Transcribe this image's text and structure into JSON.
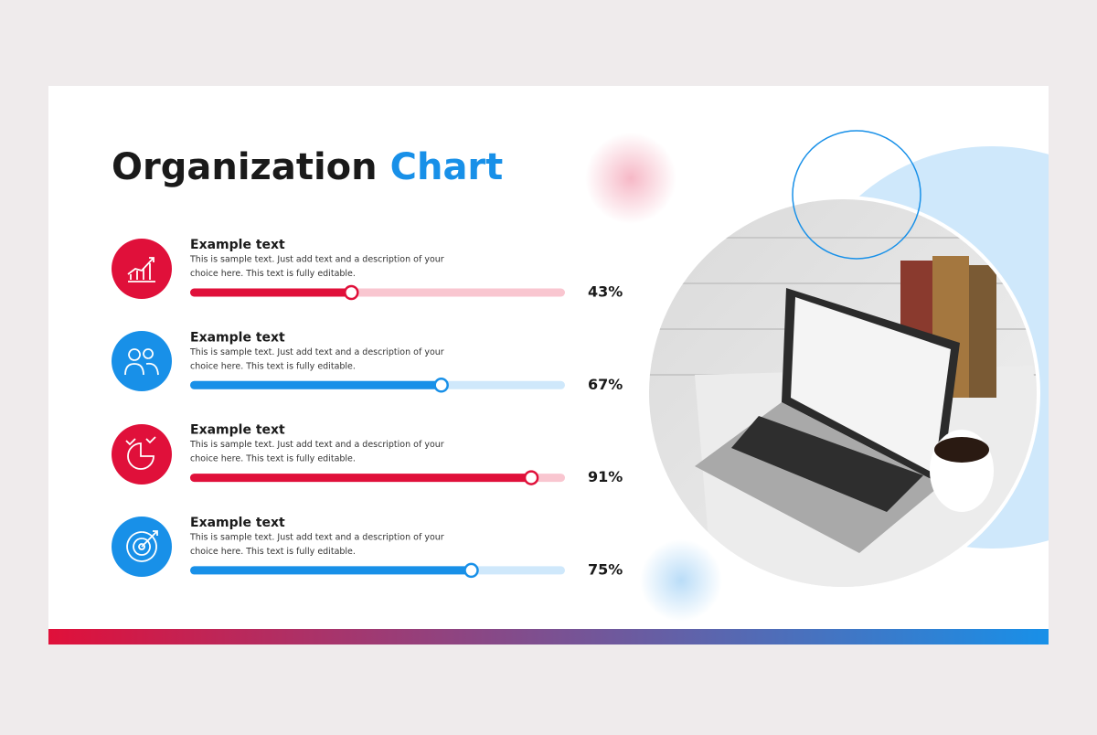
{
  "header": {
    "title_dark": "Organization",
    "title_accent": "Chart"
  },
  "progress": {
    "xlim": [
      0,
      100
    ],
    "items": [
      {
        "title": "Example text",
        "description": [
          "This is sample text. Just add text and a description of your",
          "choice here. This text is fully editable."
        ],
        "value": 43,
        "value_label": "43%",
        "color": "#e0103a",
        "track_color": "#f9c6d0"
      },
      {
        "title": "Example text",
        "description": [
          "This is sample text. Just add text and a description of your",
          "choice here. This text is fully editable."
        ],
        "value": 67,
        "value_label": "67%",
        "color": "#1890e8",
        "track_color": "#cfe8fb"
      },
      {
        "title": "Example text",
        "description": [
          "This is sample text. Just add text and a description of your",
          "choice here. This text is fully editable."
        ],
        "value": 91,
        "value_label": "91%",
        "color": "#e0103a",
        "track_color": "#f9c6d0"
      },
      {
        "title": "Example text",
        "description": [
          "This is sample text. Just add text and a description of your",
          "choice here. This text is fully editable."
        ],
        "value": 75,
        "value_label": "75%",
        "color": "#1890e8",
        "track_color": "#cfe8fb"
      }
    ]
  }
}
